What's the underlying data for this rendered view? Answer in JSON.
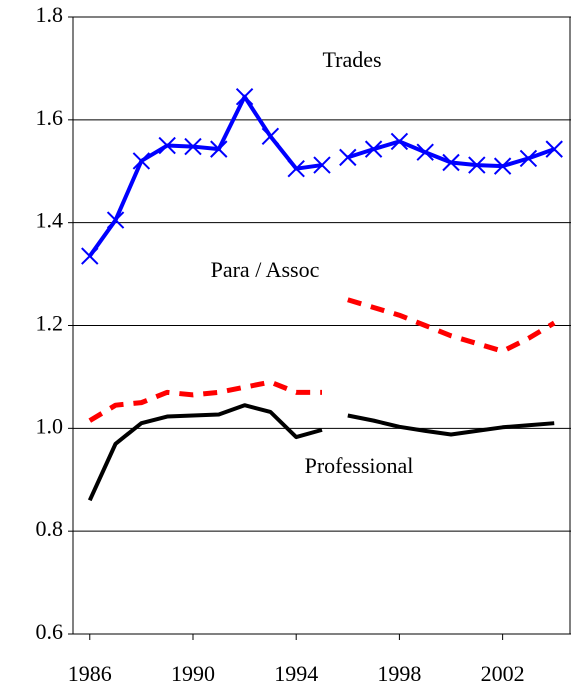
{
  "chart_data": {
    "type": "line",
    "annotations": [
      "Trades",
      "Para / Assoc",
      "Professional"
    ],
    "xlim": [
      1985.35,
      2004.65
    ],
    "xticks": [
      1986,
      1990,
      1994,
      1998,
      2002
    ],
    "ylim": [
      0.6,
      1.8
    ],
    "yticks": [
      0.6,
      0.8,
      {
        "value": 1,
        "label": "1.0"
      },
      1.2,
      1.4,
      1.6,
      1.8
    ],
    "grid": true,
    "series": [
      {
        "color": "#0000ff",
        "marker": "x",
        "dash": false,
        "x": [
          1986,
          1987,
          1988,
          1989,
          1990,
          1991,
          1992,
          1993,
          1994,
          1995
        ],
        "values": [
          1.335,
          1.405,
          1.52,
          1.55,
          1.548,
          1.543,
          1.645,
          1.568,
          1.505,
          1.512
        ]
      },
      {
        "color": "#0000ff",
        "marker": "x",
        "dash": false,
        "x": [
          1996,
          1997,
          1998,
          1999,
          2000,
          2001,
          2002,
          2003,
          2004
        ],
        "values": [
          1.527,
          1.543,
          1.558,
          1.537,
          1.517,
          1.512,
          1.51,
          1.525,
          1.543
        ]
      },
      {
        "color": "#ff0000",
        "marker": "none",
        "dash": true,
        "x": [
          1986,
          1987,
          1988,
          1989,
          1990,
          1991,
          1992,
          1993,
          1994,
          1995
        ],
        "values": [
          1.015,
          1.045,
          1.05,
          1.07,
          1.065,
          1.07,
          1.08,
          1.09,
          1.07,
          1.07
        ]
      },
      {
        "color": "#ff0000",
        "marker": "none",
        "dash": true,
        "x": [
          1996,
          1997,
          1998,
          1999,
          2000,
          2001,
          2002,
          2003,
          2004
        ],
        "values": [
          1.25,
          1.235,
          1.22,
          1.2,
          1.18,
          1.165,
          1.15,
          1.175,
          1.205
        ]
      },
      {
        "color": "#000000",
        "marker": "none",
        "dash": false,
        "x": [
          1986,
          1987,
          1988,
          1989,
          1990,
          1991,
          1992,
          1993,
          1994,
          1995
        ],
        "values": [
          0.86,
          0.97,
          1.01,
          1.023,
          1.025,
          1.027,
          1.045,
          1.032,
          0.983,
          0.997
        ]
      },
      {
        "color": "#000000",
        "marker": "none",
        "dash": false,
        "x": [
          1996,
          1997,
          1998,
          1999,
          2000,
          2001,
          2002,
          2003,
          2004
        ],
        "values": [
          1.025,
          1.015,
          1.003,
          0.995,
          0.988,
          0.995,
          1.002,
          1.006,
          1.01
        ]
      }
    ]
  }
}
